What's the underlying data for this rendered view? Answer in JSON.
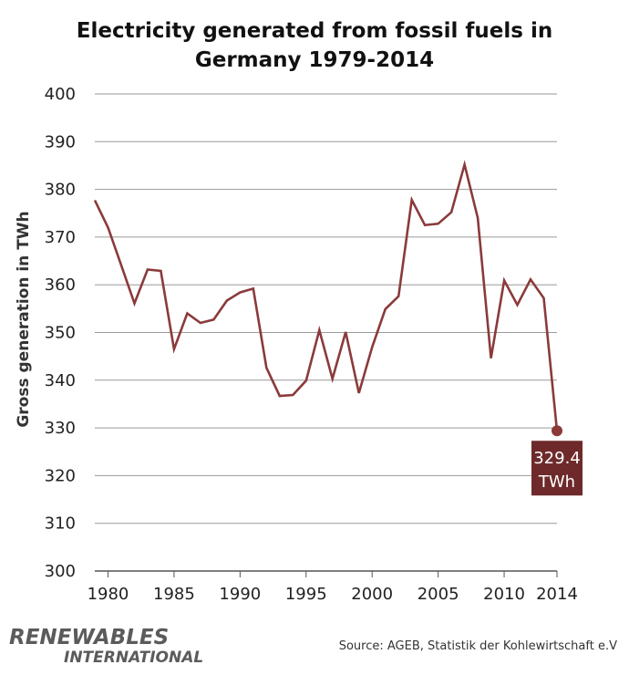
{
  "chart_data": {
    "type": "line",
    "title_lines": [
      "Electricity generated from fossil fuels in",
      "Germany 1979-2014"
    ],
    "ylabel": "Gross generation in TWh",
    "xlabel": "",
    "ylim": [
      300,
      400
    ],
    "xlim": [
      1979,
      2014
    ],
    "yticks": [
      300,
      310,
      320,
      330,
      340,
      350,
      360,
      370,
      380,
      390,
      400
    ],
    "xticks": [
      1980,
      1985,
      1990,
      1995,
      2000,
      2005,
      2010,
      2014
    ],
    "grid": "horizontal",
    "line_color": "#8b3a3a",
    "callout_color": "#6e2a2a",
    "x": [
      1979,
      1980,
      1981,
      1982,
      1983,
      1984,
      1985,
      1986,
      1987,
      1988,
      1989,
      1990,
      1991,
      1992,
      1993,
      1994,
      1995,
      1996,
      1997,
      1998,
      1999,
      2000,
      2001,
      2002,
      2003,
      2004,
      2005,
      2006,
      2007,
      2008,
      2009,
      2010,
      2011,
      2012,
      2013,
      2014
    ],
    "values": [
      377.7,
      372,
      364.1,
      356.1,
      363.2,
      362.9,
      346.5,
      354,
      352,
      352.7,
      356.7,
      358.4,
      359.2,
      342.6,
      336.7,
      336.9,
      339.9,
      350.5,
      340.3,
      350.1,
      337.3,
      346.9,
      354.9,
      357.6,
      377.8,
      372.5,
      372.8,
      375.2,
      385.2,
      374,
      344.6,
      360.9,
      355.8,
      361.1,
      357.2,
      329.4
    ],
    "annotation": {
      "x": 2014,
      "value": 329.4,
      "lines": [
        "329.4",
        "TWh"
      ]
    }
  },
  "logo": {
    "line1": "RENEWABLES",
    "line2": "INTERNATIONAL"
  },
  "source": "Source: AGEB, Statistik der Kohlewirtschaft e.V"
}
